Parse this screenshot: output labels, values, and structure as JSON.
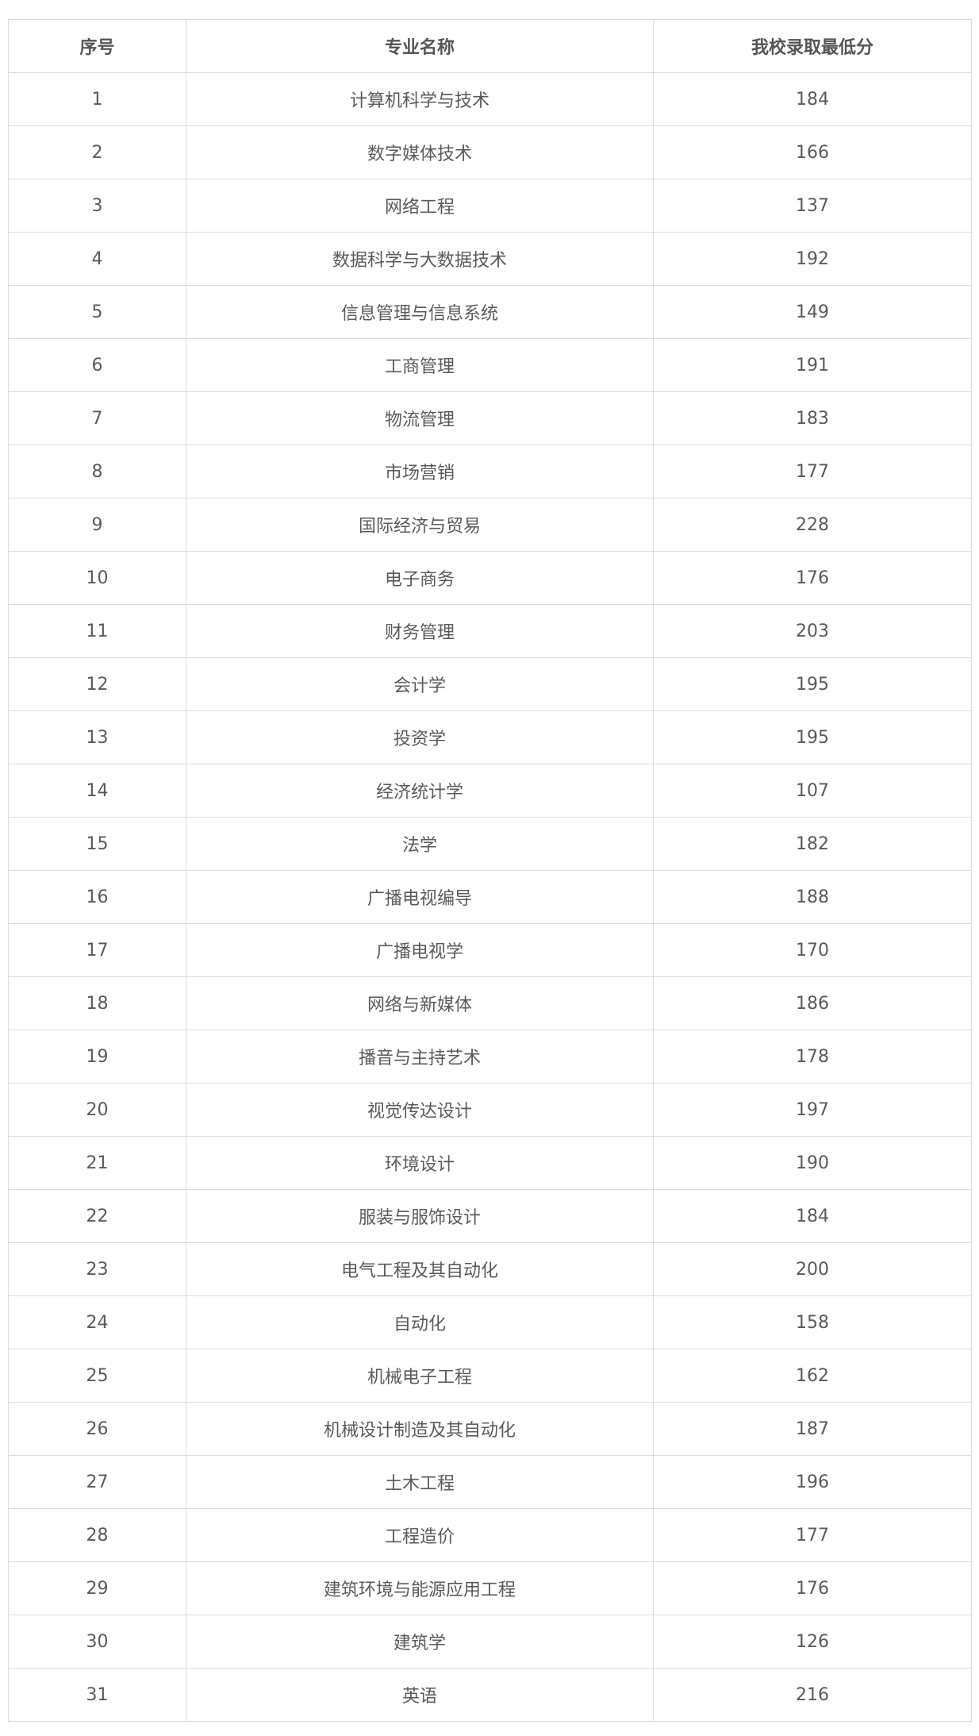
{
  "table": {
    "headers": [
      "序号",
      "专业名称",
      "我校录取最低分"
    ],
    "rows": [
      [
        "1",
        "计算机科学与技术",
        "184"
      ],
      [
        "2",
        "数字媒体技术",
        "166"
      ],
      [
        "3",
        "网络工程",
        "137"
      ],
      [
        "4",
        "数据科学与大数据技术",
        "192"
      ],
      [
        "5",
        "信息管理与信息系统",
        "149"
      ],
      [
        "6",
        "工商管理",
        "191"
      ],
      [
        "7",
        "物流管理",
        "183"
      ],
      [
        "8",
        "市场营销",
        "177"
      ],
      [
        "9",
        "国际经济与贸易",
        "228"
      ],
      [
        "10",
        "电子商务",
        "176"
      ],
      [
        "11",
        "财务管理",
        "203"
      ],
      [
        "12",
        "会计学",
        "195"
      ],
      [
        "13",
        "投资学",
        "195"
      ],
      [
        "14",
        "经济统计学",
        "107"
      ],
      [
        "15",
        "法学",
        "182"
      ],
      [
        "16",
        "广播电视编导",
        "188"
      ],
      [
        "17",
        "广播电视学",
        "170"
      ],
      [
        "18",
        "网络与新媒体",
        "186"
      ],
      [
        "19",
        "播音与主持艺术",
        "178"
      ],
      [
        "20",
        "视觉传达设计",
        "197"
      ],
      [
        "21",
        "环境设计",
        "190"
      ],
      [
        "22",
        "服装与服饰设计",
        "184"
      ],
      [
        "23",
        "电气工程及其自动化",
        "200"
      ],
      [
        "24",
        "自动化",
        "158"
      ],
      [
        "25",
        "机械电子工程",
        "162"
      ],
      [
        "26",
        "机械设计制造及其自动化",
        "187"
      ],
      [
        "27",
        "土木工程",
        "196"
      ],
      [
        "28",
        "工程造价",
        "177"
      ],
      [
        "29",
        "建筑环境与能源应用工程",
        "176"
      ],
      [
        "30",
        "建筑学",
        "126"
      ],
      [
        "31",
        "英语",
        "216"
      ]
    ]
  }
}
